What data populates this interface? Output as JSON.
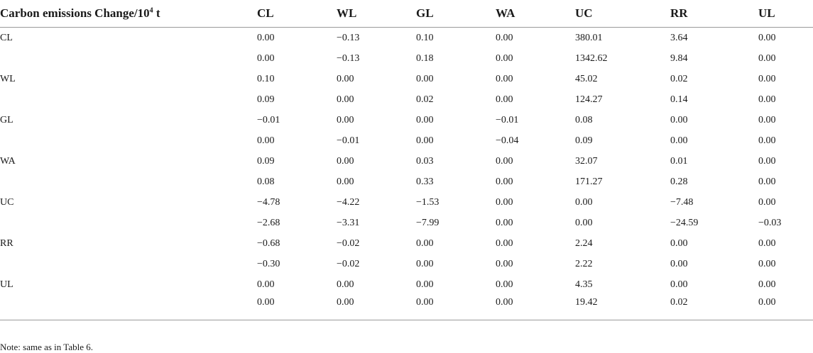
{
  "table": {
    "header": {
      "title_main": "Carbon emissions Change/10",
      "title_sup": "4",
      "title_unit": " t",
      "columns": [
        "CL",
        "WL",
        "GL",
        "WA",
        "UC",
        "RR",
        "UL"
      ]
    },
    "rows": [
      {
        "label": "CL",
        "values": [
          "0.00",
          "−0.13",
          "0.10",
          "0.00",
          "380.01",
          "3.64",
          "0.00"
        ]
      },
      {
        "label": "",
        "values": [
          "0.00",
          "−0.13",
          "0.18",
          "0.00",
          "1342.62",
          "9.84",
          "0.00"
        ]
      },
      {
        "label": "WL",
        "values": [
          "0.10",
          "0.00",
          "0.00",
          "0.00",
          "45.02",
          "0.02",
          "0.00"
        ]
      },
      {
        "label": "",
        "values": [
          "0.09",
          "0.00",
          "0.02",
          "0.00",
          "124.27",
          "0.14",
          "0.00"
        ]
      },
      {
        "label": "GL",
        "values": [
          "−0.01",
          "0.00",
          "0.00",
          "−0.01",
          "0.08",
          "0.00",
          "0.00"
        ]
      },
      {
        "label": "",
        "values": [
          "0.00",
          "−0.01",
          "0.00",
          "−0.04",
          "0.09",
          "0.00",
          "0.00"
        ]
      },
      {
        "label": "WA",
        "values": [
          "0.09",
          "0.00",
          "0.03",
          "0.00",
          "32.07",
          "0.01",
          "0.00"
        ]
      },
      {
        "label": "",
        "values": [
          "0.08",
          "0.00",
          "0.33",
          "0.00",
          "171.27",
          "0.28",
          "0.00"
        ]
      },
      {
        "label": "UC",
        "values": [
          "−4.78",
          "−4.22",
          "−1.53",
          "0.00",
          "0.00",
          "−7.48",
          "0.00"
        ]
      },
      {
        "label": "",
        "values": [
          "−2.68",
          "−3.31",
          "−7.99",
          "0.00",
          "0.00",
          "−24.59",
          "−0.03"
        ]
      },
      {
        "label": "RR",
        "values": [
          "−0.68",
          "−0.02",
          "0.00",
          "0.00",
          "2.24",
          "0.00",
          "0.00"
        ]
      },
      {
        "label": "",
        "values": [
          "−0.30",
          "−0.02",
          "0.00",
          "0.00",
          "2.22",
          "0.00",
          "0.00"
        ]
      },
      {
        "label": "UL",
        "values": [
          "0.00",
          "0.00",
          "0.00",
          "0.00",
          "4.35",
          "0.00",
          "0.00"
        ]
      },
      {
        "label": "",
        "values": [
          "0.00",
          "0.00",
          "0.00",
          "0.00",
          "19.42",
          "0.02",
          "0.00"
        ]
      }
    ]
  },
  "note": "Note: same as in Table 6."
}
